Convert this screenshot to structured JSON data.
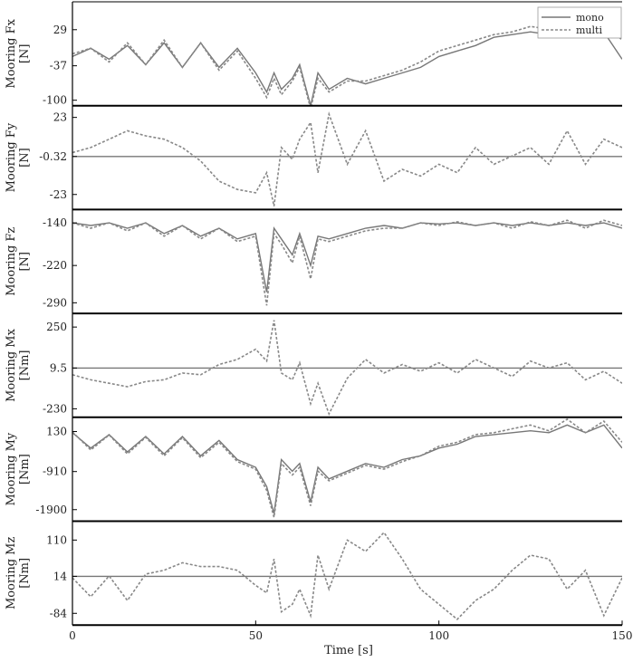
{
  "chart_data": {
    "type": "line",
    "xlabel": "Time [s]",
    "xlim": [
      0,
      150
    ],
    "xticks": [
      "0",
      "50",
      "100",
      "150"
    ],
    "legend": {
      "placement": "top-right",
      "entries": [
        {
          "name": "mono",
          "style": "solid",
          "color": "#777777"
        },
        {
          "name": "multi",
          "style": "dashed",
          "color": "#888888"
        }
      ]
    },
    "panels": [
      {
        "ylabel": [
          "Mooring Fx",
          "[N]"
        ],
        "yticks": [
          "29",
          "-37",
          "-100"
        ],
        "ytick_values": [
          29,
          -37,
          -100
        ],
        "ylim": [
          -110,
          80
        ],
        "x": [
          0,
          5,
          10,
          15,
          20,
          25,
          30,
          35,
          40,
          45,
          50,
          53,
          55,
          57,
          60,
          62,
          65,
          67,
          70,
          75,
          80,
          85,
          90,
          95,
          100,
          105,
          110,
          115,
          120,
          125,
          130,
          135,
          140,
          145,
          150
        ],
        "series": [
          {
            "name": "mono",
            "values": [
              -20,
              -5,
              -25,
              0,
              -35,
              5,
              -40,
              5,
              -40,
              -5,
              -50,
              -85,
              -50,
              -80,
              -60,
              -35,
              -110,
              -50,
              -80,
              -60,
              -70,
              -60,
              -50,
              -40,
              -20,
              -10,
              0,
              15,
              20,
              25,
              20,
              30,
              20,
              25,
              -25
            ]
          },
          {
            "name": "multi",
            "values": [
              -15,
              -5,
              -30,
              5,
              -35,
              10,
              -40,
              5,
              -45,
              -10,
              -60,
              -95,
              -60,
              -90,
              -65,
              -40,
              -115,
              -60,
              -85,
              -65,
              -65,
              -55,
              -45,
              -30,
              -10,
              0,
              10,
              20,
              25,
              35,
              30,
              40,
              30,
              40,
              10
            ]
          }
        ]
      },
      {
        "ylabel": [
          "Mooring Fy",
          "[N]"
        ],
        "yticks": [
          "23",
          "-0.32",
          "-23"
        ],
        "ytick_values": [
          23,
          -0.32,
          -23
        ],
        "ylim": [
          -32,
          30
        ],
        "x": [
          0,
          5,
          10,
          15,
          20,
          25,
          30,
          35,
          40,
          45,
          50,
          53,
          55,
          57,
          60,
          62,
          65,
          67,
          70,
          75,
          80,
          85,
          90,
          95,
          100,
          105,
          110,
          115,
          120,
          125,
          130,
          135,
          140,
          145,
          150
        ],
        "series": [
          {
            "name": "mono",
            "values": [
              -0.32,
              -0.32,
              -0.32,
              -0.32,
              -0.32,
              -0.32,
              -0.32,
              -0.32,
              -0.32,
              -0.32,
              -0.32,
              -0.32,
              -0.32,
              -0.32,
              -0.32,
              -0.32,
              -0.32,
              -0.32,
              -0.32,
              -0.32,
              -0.32,
              -0.32,
              -0.32,
              -0.32,
              -0.32,
              -0.32,
              -0.32,
              -0.32,
              -0.32,
              -0.32,
              -0.32,
              -0.32,
              -0.32,
              -0.32,
              -0.32
            ]
          },
          {
            "name": "multi",
            "values": [
              2,
              5,
              10,
              15,
              12,
              10,
              5,
              -3,
              -15,
              -20,
              -22,
              -10,
              -30,
              5,
              -2,
              10,
              20,
              -10,
              25,
              -5,
              15,
              -15,
              -8,
              -12,
              -5,
              -10,
              5,
              -5,
              0,
              5,
              -5,
              15,
              -5,
              10,
              5
            ]
          }
        ]
      },
      {
        "ylabel": [
          "Mooring Fz",
          "[N]"
        ],
        "yticks": [
          "-140",
          "-220",
          "-290"
        ],
        "ytick_values": [
          -140,
          -220,
          -290
        ],
        "ylim": [
          -310,
          -115
        ],
        "x": [
          0,
          5,
          10,
          15,
          20,
          25,
          30,
          35,
          40,
          45,
          50,
          53,
          55,
          57,
          60,
          62,
          65,
          67,
          70,
          75,
          80,
          85,
          90,
          95,
          100,
          105,
          110,
          115,
          120,
          125,
          130,
          135,
          140,
          145,
          150
        ],
        "series": [
          {
            "name": "mono",
            "values": [
              -140,
              -145,
              -140,
              -150,
              -140,
              -160,
              -145,
              -165,
              -150,
              -170,
              -160,
              -270,
              -150,
              -170,
              -200,
              -160,
              -220,
              -165,
              -170,
              -160,
              -150,
              -145,
              -150,
              -140,
              -142,
              -140,
              -145,
              -140,
              -145,
              -140,
              -145,
              -140,
              -145,
              -140,
              -150
            ]
          },
          {
            "name": "multi",
            "values": [
              -140,
              -150,
              -140,
              -155,
              -140,
              -165,
              -145,
              -170,
              -150,
              -175,
              -165,
              -295,
              -160,
              -180,
              -215,
              -165,
              -245,
              -170,
              -175,
              -165,
              -155,
              -150,
              -150,
              -140,
              -145,
              -138,
              -145,
              -140,
              -150,
              -138,
              -145,
              -135,
              -150,
              -135,
              -145
            ]
          }
        ]
      },
      {
        "ylabel": [
          "Mooring Mx",
          "[Nm]"
        ],
        "yticks": [
          "250",
          "9.5",
          "-230"
        ],
        "ytick_values": [
          250,
          9.5,
          -230
        ],
        "ylim": [
          -280,
          330
        ],
        "x": [
          0,
          5,
          10,
          15,
          20,
          25,
          30,
          35,
          40,
          45,
          50,
          53,
          55,
          57,
          60,
          62,
          65,
          67,
          70,
          75,
          80,
          85,
          90,
          95,
          100,
          105,
          110,
          115,
          120,
          125,
          130,
          135,
          140,
          145,
          150
        ],
        "series": [
          {
            "name": "mono",
            "values": [
              9.5,
              9.5,
              9.5,
              9.5,
              9.5,
              9.5,
              9.5,
              9.5,
              9.5,
              9.5,
              9.5,
              9.5,
              9.5,
              9.5,
              9.5,
              9.5,
              9.5,
              9.5,
              9.5,
              9.5,
              9.5,
              9.5,
              9.5,
              9.5,
              9.5,
              9.5,
              9.5,
              9.5,
              9.5,
              9.5,
              9.5,
              9.5,
              9.5,
              9.5,
              9.5
            ]
          },
          {
            "name": "multi",
            "values": [
              -30,
              -60,
              -80,
              -100,
              -70,
              -60,
              -20,
              -30,
              30,
              60,
              120,
              50,
              290,
              -20,
              -60,
              40,
              -200,
              -80,
              -260,
              -50,
              60,
              -20,
              30,
              -10,
              40,
              -20,
              60,
              10,
              -40,
              50,
              10,
              40,
              -60,
              -10,
              -80
            ]
          }
        ]
      },
      {
        "ylabel": [
          "Mooring My",
          "[Nm]"
        ],
        "yticks": [
          "130",
          "-910",
          "-1900"
        ],
        "ytick_values": [
          130,
          -910,
          -1900
        ],
        "ylim": [
          -2200,
          500
        ],
        "x": [
          0,
          5,
          10,
          15,
          20,
          25,
          30,
          35,
          40,
          45,
          50,
          53,
          55,
          57,
          60,
          62,
          65,
          67,
          70,
          75,
          80,
          85,
          90,
          95,
          100,
          105,
          110,
          115,
          120,
          125,
          130,
          135,
          140,
          145,
          150
        ],
        "series": [
          {
            "name": "mono",
            "values": [
              100,
              -300,
              50,
              -400,
              0,
              -450,
              0,
              -500,
              -100,
              -600,
              -800,
              -1300,
              -2000,
              -600,
              -900,
              -700,
              -1700,
              -800,
              -1100,
              -900,
              -700,
              -800,
              -600,
              -500,
              -300,
              -200,
              0,
              50,
              100,
              150,
              100,
              300,
              100,
              300,
              -300
            ]
          },
          {
            "name": "multi",
            "values": [
              120,
              -350,
              40,
              -450,
              -20,
              -500,
              -30,
              -550,
              -150,
              -650,
              -850,
              -1400,
              -2100,
              -700,
              -1000,
              -800,
              -1800,
              -900,
              -1150,
              -950,
              -750,
              -850,
              -650,
              -500,
              -250,
              -150,
              50,
              100,
              200,
              300,
              150,
              450,
              100,
              400,
              -150
            ]
          }
        ]
      },
      {
        "ylabel": [
          "Mooring Mz",
          "[Nm]"
        ],
        "yticks": [
          "110",
          "14",
          "-84"
        ],
        "ytick_values": [
          110,
          14,
          -84
        ],
        "ylim": [
          -115,
          160
        ],
        "x": [
          0,
          5,
          10,
          15,
          20,
          25,
          30,
          35,
          40,
          45,
          50,
          53,
          55,
          57,
          60,
          62,
          65,
          67,
          70,
          75,
          80,
          85,
          90,
          95,
          100,
          105,
          110,
          115,
          120,
          125,
          130,
          135,
          140,
          145,
          150
        ],
        "series": [
          {
            "name": "mono",
            "values": [
              14,
              14,
              14,
              14,
              14,
              14,
              14,
              14,
              14,
              14,
              14,
              14,
              14,
              14,
              14,
              14,
              14,
              14,
              14,
              14,
              14,
              14,
              14,
              14,
              14,
              14,
              14,
              14,
              14,
              14,
              14,
              14,
              14,
              14,
              14
            ]
          },
          {
            "name": "multi",
            "values": [
              10,
              -40,
              15,
              -50,
              20,
              30,
              50,
              40,
              40,
              30,
              -10,
              -30,
              60,
              -80,
              -60,
              -20,
              -90,
              70,
              -20,
              110,
              80,
              130,
              60,
              -20,
              -60,
              -100,
              -50,
              -20,
              30,
              70,
              60,
              -20,
              30,
              -90,
              10
            ]
          }
        ]
      }
    ]
  }
}
